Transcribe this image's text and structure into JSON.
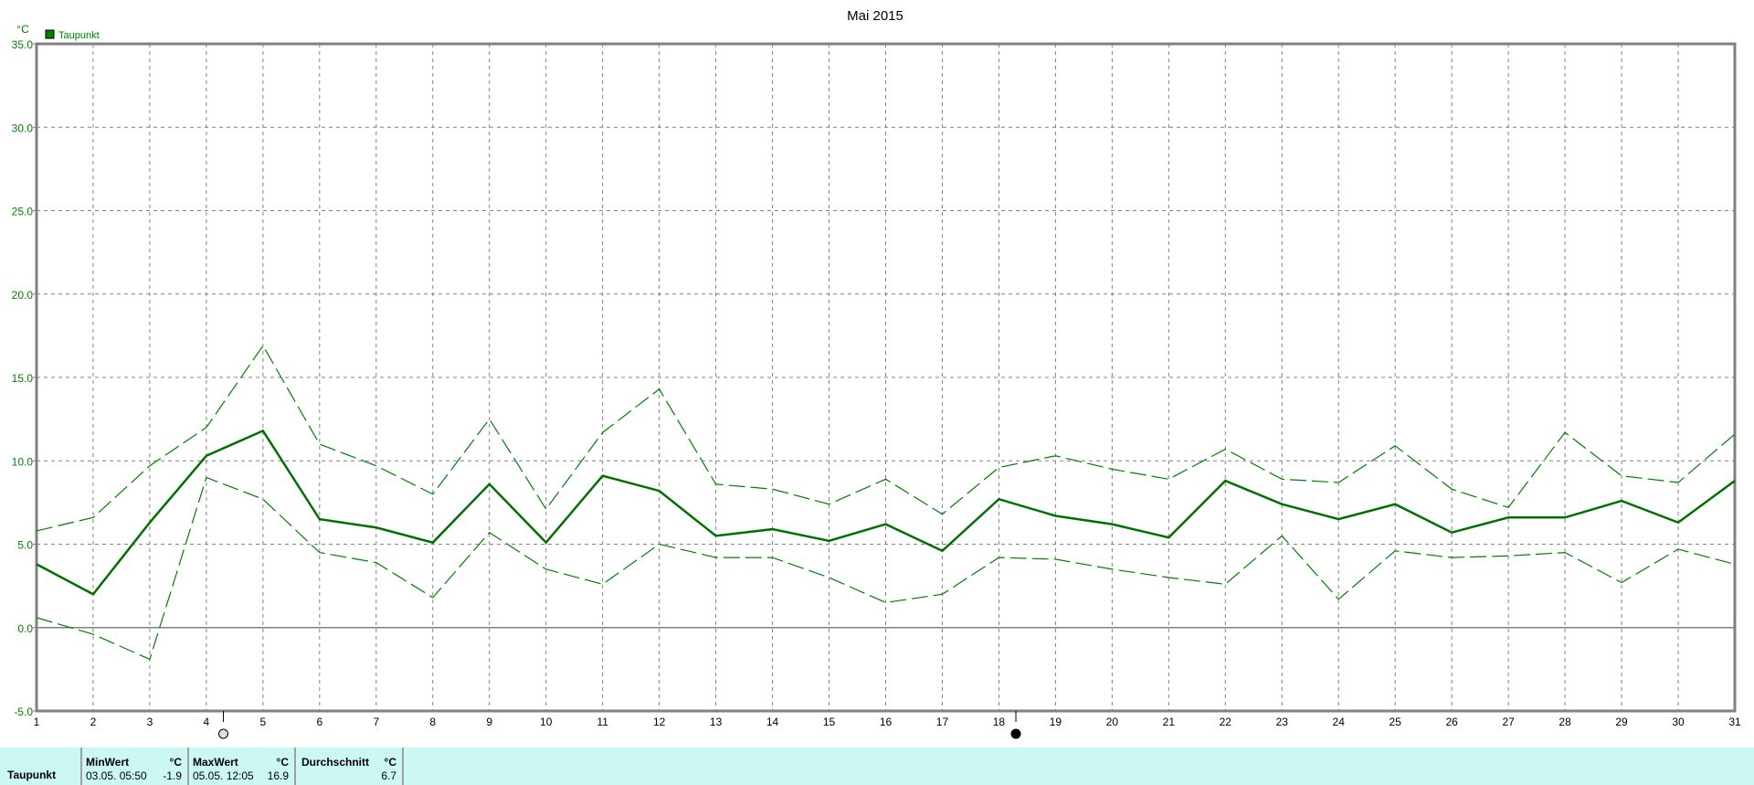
{
  "chart_data": {
    "type": "line",
    "title": "Mai 2015",
    "ylabel": "°C",
    "ylim": [
      -5,
      35
    ],
    "yticks": [
      "35.0",
      "30.0",
      "25.0",
      "20.0",
      "15.0",
      "10.0",
      "5.0",
      "0.0",
      "-5.0"
    ],
    "x": [
      1,
      2,
      3,
      4,
      5,
      6,
      7,
      8,
      9,
      10,
      11,
      12,
      13,
      14,
      15,
      16,
      17,
      18,
      19,
      20,
      21,
      22,
      23,
      24,
      25,
      26,
      27,
      28,
      29,
      30,
      31
    ],
    "grid": true,
    "legend": "top-left",
    "legend_label": "Taupunkt",
    "color": "#008000",
    "series": [
      {
        "name": "Taupunkt",
        "style": "solid",
        "values": [
          3.8,
          2.0,
          6.3,
          10.3,
          11.8,
          6.5,
          6.0,
          5.1,
          8.6,
          5.1,
          9.1,
          8.2,
          5.5,
          5.9,
          5.2,
          6.2,
          4.6,
          7.7,
          6.7,
          6.2,
          5.4,
          8.8,
          7.4,
          6.5,
          7.4,
          5.7,
          6.6,
          6.6,
          7.6,
          6.3,
          8.8
        ]
      },
      {
        "style": "dashed-max",
        "values": [
          5.8,
          6.6,
          9.7,
          12.0,
          16.9,
          11.0,
          9.7,
          8.0,
          12.5,
          7.1,
          11.7,
          14.3,
          8.6,
          8.3,
          7.4,
          8.9,
          6.8,
          9.6,
          10.3,
          9.5,
          8.9,
          10.7,
          8.9,
          8.7,
          10.9,
          8.3,
          7.2,
          11.7,
          9.1,
          8.7,
          11.6
        ]
      },
      {
        "style": "dashed-min",
        "values": [
          0.6,
          -0.4,
          -1.9,
          9.0,
          7.7,
          4.5,
          3.9,
          1.8,
          5.7,
          3.5,
          2.6,
          5.0,
          4.2,
          4.2,
          3.0,
          1.5,
          2.0,
          4.2,
          4.1,
          3.5,
          3.0,
          2.6,
          5.5,
          1.7,
          4.6,
          4.2,
          4.3,
          4.5,
          2.7,
          4.7,
          3.8
        ]
      }
    ],
    "moon_markers": [
      {
        "day": 4.3,
        "phase": "full-moon"
      },
      {
        "day": 18.3,
        "phase": "new-moon"
      }
    ]
  },
  "table": {
    "row_label": "Taupunkt",
    "min": {
      "header": "MinWert",
      "unit": "°C",
      "time": "03.05.  05:50",
      "value": "-1.9"
    },
    "max": {
      "header": "MaxWert",
      "unit": "°C",
      "time": "05.05.  12:05",
      "value": "16.9"
    },
    "avg": {
      "header": "Durchschnitt",
      "unit": "°C",
      "value": "6.7"
    }
  }
}
